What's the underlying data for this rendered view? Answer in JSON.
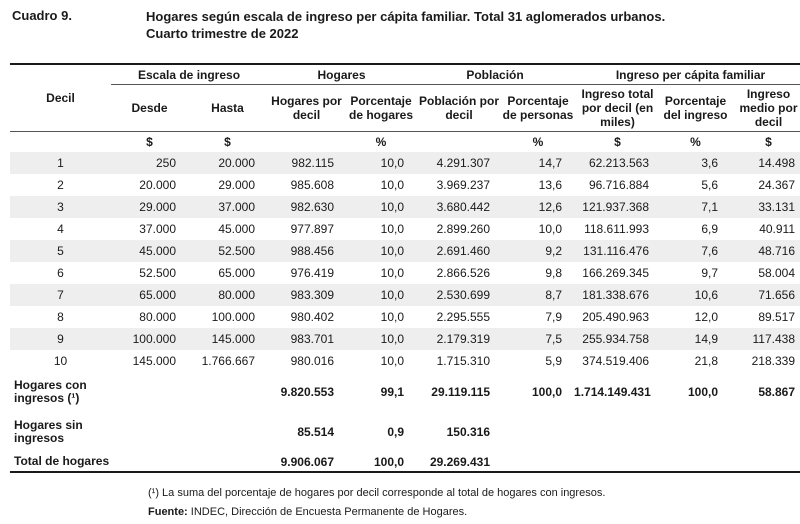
{
  "caption": {
    "label": "Cuadro 9.",
    "title_line1": "Hogares según escala de ingreso per cápita familiar. Total 31 aglomerados urbanos.",
    "title_line2": "Cuarto trimestre de 2022"
  },
  "table": {
    "group_headers": {
      "decil": "Decil",
      "escala": "Escala de ingreso",
      "hogares": "Hogares",
      "poblacion": "Población",
      "ingreso": "Ingreso per cápita familiar"
    },
    "sub_headers": {
      "desde": "Desde",
      "hasta": "Hasta",
      "hogares_por_decil": "Hogares por decil",
      "porcentaje_hogares": "Porcentaje de hogares",
      "poblacion_por_decil": "Población por decil",
      "porcentaje_personas": "Porcentaje de personas",
      "ingreso_total": "Ingreso total por decil (en miles)",
      "porcentaje_ingreso": "Porcentaje del ingreso",
      "ingreso_medio": "Ingreso medio por decil"
    },
    "units": [
      "$",
      "$",
      "%",
      "%",
      "$",
      "%",
      "$"
    ],
    "rows": [
      {
        "decil": "1",
        "desde": "250",
        "hasta": "20.000",
        "hogares": "982.115",
        "pct_hogares": "10,0",
        "poblacion": "4.291.307",
        "pct_personas": "14,7",
        "ingreso_total": "62.213.563",
        "pct_ingreso": "3,6",
        "ingreso_medio": "14.498"
      },
      {
        "decil": "2",
        "desde": "20.000",
        "hasta": "29.000",
        "hogares": "985.608",
        "pct_hogares": "10,0",
        "poblacion": "3.969.237",
        "pct_personas": "13,6",
        "ingreso_total": "96.716.884",
        "pct_ingreso": "5,6",
        "ingreso_medio": "24.367"
      },
      {
        "decil": "3",
        "desde": "29.000",
        "hasta": "37.000",
        "hogares": "982.630",
        "pct_hogares": "10,0",
        "poblacion": "3.680.442",
        "pct_personas": "12,6",
        "ingreso_total": "121.937.368",
        "pct_ingreso": "7,1",
        "ingreso_medio": "33.131"
      },
      {
        "decil": "4",
        "desde": "37.000",
        "hasta": "45.000",
        "hogares": "977.897",
        "pct_hogares": "10,0",
        "poblacion": "2.899.260",
        "pct_personas": "10,0",
        "ingreso_total": "118.611.993",
        "pct_ingreso": "6,9",
        "ingreso_medio": "40.911"
      },
      {
        "decil": "5",
        "desde": "45.000",
        "hasta": "52.500",
        "hogares": "988.456",
        "pct_hogares": "10,0",
        "poblacion": "2.691.460",
        "pct_personas": "9,2",
        "ingreso_total": "131.116.476",
        "pct_ingreso": "7,6",
        "ingreso_medio": "48.716"
      },
      {
        "decil": "6",
        "desde": "52.500",
        "hasta": "65.000",
        "hogares": "976.419",
        "pct_hogares": "10,0",
        "poblacion": "2.866.526",
        "pct_personas": "9,8",
        "ingreso_total": "166.269.345",
        "pct_ingreso": "9,7",
        "ingreso_medio": "58.004"
      },
      {
        "decil": "7",
        "desde": "65.000",
        "hasta": "80.000",
        "hogares": "983.309",
        "pct_hogares": "10,0",
        "poblacion": "2.530.699",
        "pct_personas": "8,7",
        "ingreso_total": "181.338.676",
        "pct_ingreso": "10,6",
        "ingreso_medio": "71.656"
      },
      {
        "decil": "8",
        "desde": "80.000",
        "hasta": "100.000",
        "hogares": "980.402",
        "pct_hogares": "10,0",
        "poblacion": "2.295.555",
        "pct_personas": "7,9",
        "ingreso_total": "205.490.963",
        "pct_ingreso": "12,0",
        "ingreso_medio": "89.517"
      },
      {
        "decil": "9",
        "desde": "100.000",
        "hasta": "145.000",
        "hogares": "983.701",
        "pct_hogares": "10,0",
        "poblacion": "2.179.319",
        "pct_personas": "7,5",
        "ingreso_total": "255.934.758",
        "pct_ingreso": "14,9",
        "ingreso_medio": "117.438"
      },
      {
        "decil": "10",
        "desde": "145.000",
        "hasta": "1.766.667",
        "hogares": "980.016",
        "pct_hogares": "10,0",
        "poblacion": "1.715.310",
        "pct_personas": "5,9",
        "ingreso_total": "374.519.406",
        "pct_ingreso": "21,8",
        "ingreso_medio": "218.339"
      }
    ],
    "summary": {
      "con_ingresos": {
        "label": "Hogares con ingresos (¹)",
        "hogares": "9.820.553",
        "pct_hogares": "99,1",
        "poblacion": "29.119.115",
        "pct_personas": "100,0",
        "ingreso_total": "1.714.149.431",
        "pct_ingreso": "100,0",
        "ingreso_medio": "58.867"
      },
      "sin_ingresos": {
        "label": "Hogares sin ingresos",
        "hogares": "85.514",
        "pct_hogares": "0,9",
        "poblacion": "150.316"
      },
      "total": {
        "label": "Total de hogares",
        "hogares": "9.906.067",
        "pct_hogares": "100,0",
        "poblacion": "29.269.431"
      }
    }
  },
  "footnote": "(¹) La suma del porcentaje de hogares por decil corresponde al total de hogares con ingresos.",
  "source": {
    "label": "Fuente:",
    "text": " INDEC, Dirección de Encuesta Permanente de Hogares."
  }
}
